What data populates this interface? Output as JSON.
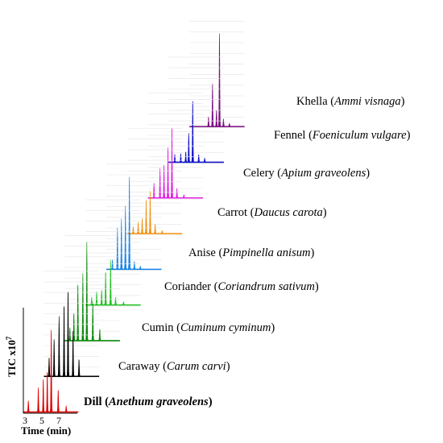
{
  "chart_data": {
    "type": "area",
    "subtype": "stacked-3d-chromatograms",
    "title": "",
    "xlabel": "Time (min)",
    "ylabel": "TIC x10",
    "ylabel_exponent": "7",
    "x_ticks": [
      "3",
      "5",
      "7"
    ],
    "xlim": [
      3,
      8.5
    ],
    "grid": true,
    "series": [
      {
        "name_common": "Dill",
        "name_latin": "Anethum graveolens",
        "color": "#e00000",
        "bold": true,
        "peaks": [
          {
            "t": 3.5,
            "h": 1.2
          },
          {
            "t": 4.5,
            "h": 2.6
          },
          {
            "t": 5.0,
            "h": 3.6
          },
          {
            "t": 5.4,
            "h": 4.4
          },
          {
            "t": 5.8,
            "h": 9.0
          },
          {
            "t": 6.5,
            "h": 2.4
          },
          {
            "t": 7.3,
            "h": 0.6
          }
        ]
      },
      {
        "name_common": "Caraway",
        "name_latin": "Carum carvi",
        "color": "#000000",
        "peaks": [
          {
            "t": 3.5,
            "h": 2.0
          },
          {
            "t": 4.0,
            "h": 4.0
          },
          {
            "t": 4.5,
            "h": 6.4
          },
          {
            "t": 5.0,
            "h": 7.8
          },
          {
            "t": 5.4,
            "h": 9.4
          },
          {
            "t": 5.9,
            "h": 4.8
          },
          {
            "t": 6.5,
            "h": 1.8
          }
        ]
      },
      {
        "name_common": "Cumin",
        "name_latin": "Cuminum cyminum",
        "color": "#0a8a0a",
        "peaks": [
          {
            "t": 3.5,
            "h": 1.4
          },
          {
            "t": 3.9,
            "h": 3.0
          },
          {
            "t": 4.3,
            "h": 6.2
          },
          {
            "t": 4.8,
            "h": 7.2
          },
          {
            "t": 5.2,
            "h": 10.5
          },
          {
            "t": 5.8,
            "h": 4.2
          },
          {
            "t": 6.5,
            "h": 1.2
          }
        ]
      },
      {
        "name_common": "Coriander",
        "name_latin": "Coriandrum sativum",
        "color": "#22c022",
        "peaks": [
          {
            "t": 3.6,
            "h": 0.8
          },
          {
            "t": 4.1,
            "h": 1.4
          },
          {
            "t": 4.6,
            "h": 1.6
          },
          {
            "t": 5.0,
            "h": 3.6
          },
          {
            "t": 5.5,
            "h": 4.8
          },
          {
            "t": 6.0,
            "h": 0.8
          },
          {
            "t": 6.8,
            "h": 0.3
          }
        ]
      },
      {
        "name_common": "Anise",
        "name_latin": "Pimpinella anisum",
        "color": "#1a86e8",
        "peaks": [
          {
            "t": 3.6,
            "h": 1.0
          },
          {
            "t": 4.1,
            "h": 4.4
          },
          {
            "t": 4.5,
            "h": 5.4
          },
          {
            "t": 4.9,
            "h": 6.8
          },
          {
            "t": 5.3,
            "h": 10.0
          },
          {
            "t": 5.8,
            "h": 0.8
          },
          {
            "t": 6.4,
            "h": 0.3
          }
        ]
      },
      {
        "name_common": "Carrot",
        "name_latin": "Daucus carota",
        "color": "#f0900e",
        "peaks": [
          {
            "t": 3.6,
            "h": 0.7
          },
          {
            "t": 4.1,
            "h": 1.2
          },
          {
            "t": 4.5,
            "h": 1.6
          },
          {
            "t": 4.9,
            "h": 3.6
          },
          {
            "t": 5.3,
            "h": 4.6
          },
          {
            "t": 5.8,
            "h": 1.0
          },
          {
            "t": 6.5,
            "h": 0.3
          }
        ]
      },
      {
        "name_common": "Celery",
        "name_latin": "Apium graveolens",
        "color": "#e020e0",
        "peaks": [
          {
            "t": 3.6,
            "h": 1.6
          },
          {
            "t": 4.2,
            "h": 3.2
          },
          {
            "t": 4.6,
            "h": 3.6
          },
          {
            "t": 5.0,
            "h": 5.6
          },
          {
            "t": 5.4,
            "h": 7.8
          },
          {
            "t": 5.9,
            "h": 1.0
          },
          {
            "t": 6.6,
            "h": 0.3
          }
        ]
      },
      {
        "name_common": "Fennel",
        "name_latin": "Foeniculum vulgare",
        "color": "#1010c8",
        "peaks": [
          {
            "t": 3.6,
            "h": 0.8
          },
          {
            "t": 4.2,
            "h": 0.9
          },
          {
            "t": 4.7,
            "h": 1.1
          },
          {
            "t": 5.0,
            "h": 3.2
          },
          {
            "t": 5.4,
            "h": 6.8
          },
          {
            "t": 6.0,
            "h": 0.8
          },
          {
            "t": 6.6,
            "h": 0.4
          }
        ]
      },
      {
        "name_common": "Khella",
        "name_latin": "Ammi visnaga",
        "color": "#7a1080",
        "peaks": [
          {
            "t": 4.9,
            "h": 1.0
          },
          {
            "t": 5.3,
            "h": 4.6
          },
          {
            "t": 5.7,
            "h": 1.8
          },
          {
            "t": 6.0,
            "h": 10.0
          },
          {
            "t": 6.4,
            "h": 0.8
          },
          {
            "t": 7.0,
            "h": 0.3
          }
        ]
      }
    ]
  }
}
